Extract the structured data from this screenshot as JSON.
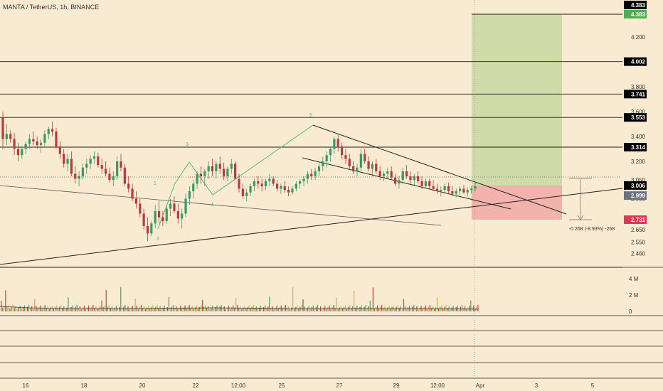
{
  "header": {
    "title": "MANTA / TetherUS, 1h, BINANCE"
  },
  "colors": {
    "background": "#f8ebd2",
    "up_candle": "#3a9a66",
    "down_candle": "#b83a3a",
    "target_zone": "#cfdca9",
    "stop_zone": "#f2b3ad",
    "wave_line": "#5ab56f",
    "level_line": "#1a1a1a"
  },
  "chart_data": {
    "type": "candlestick",
    "symbol": "MANTA / TetherUS",
    "interval": "1h",
    "exchange": "BINANCE",
    "x_ticks": [
      "16",
      "18",
      "20",
      "22",
      "12:00",
      "25",
      "27",
      "29",
      "12:00",
      "Apr",
      "3",
      "5"
    ],
    "price_ticks": [
      "4.200",
      "3.800",
      "3.600",
      "3.400",
      "3.200",
      "3.050",
      "2.900",
      "2.650",
      "2.550",
      "2.460"
    ],
    "price_range": [
      2.43,
      4.45
    ],
    "horizontal_levels": [
      "4.383",
      "4.002",
      "3.741",
      "3.553",
      "3.314",
      "3.006",
      "2.731"
    ],
    "current_price": "2.999",
    "current_price_label": "3.006",
    "position": {
      "entry": 3.006,
      "target": 4.383,
      "stop": 2.731,
      "measure_label": "-0.268 (-8.93%) -268"
    },
    "wave_labels": [
      "1",
      "2",
      "3",
      "4",
      "5"
    ],
    "volume": {
      "ticks": [
        "4 M",
        "2 M",
        "0"
      ]
    },
    "candles": [
      [
        3.55,
        3.6,
        3.3,
        3.38
      ],
      [
        3.38,
        3.5,
        3.33,
        3.42
      ],
      [
        3.42,
        3.45,
        3.35,
        3.38
      ],
      [
        3.38,
        3.43,
        3.25,
        3.3
      ],
      [
        3.3,
        3.35,
        3.2,
        3.25
      ],
      [
        3.25,
        3.32,
        3.22,
        3.3
      ],
      [
        3.3,
        3.36,
        3.26,
        3.34
      ],
      [
        3.34,
        3.42,
        3.3,
        3.38
      ],
      [
        3.38,
        3.44,
        3.33,
        3.36
      ],
      [
        3.36,
        3.4,
        3.3,
        3.33
      ],
      [
        3.33,
        3.38,
        3.27,
        3.35
      ],
      [
        3.35,
        3.45,
        3.32,
        3.42
      ],
      [
        3.42,
        3.48,
        3.38,
        3.46
      ],
      [
        3.46,
        3.52,
        3.4,
        3.44
      ],
      [
        3.44,
        3.47,
        3.3,
        3.32
      ],
      [
        3.32,
        3.36,
        3.22,
        3.26
      ],
      [
        3.26,
        3.3,
        3.15,
        3.18
      ],
      [
        3.18,
        3.26,
        3.12,
        3.22
      ],
      [
        3.22,
        3.28,
        3.08,
        3.1
      ],
      [
        3.1,
        3.16,
        3.02,
        3.06
      ],
      [
        3.06,
        3.12,
        3.0,
        3.08
      ],
      [
        3.08,
        3.18,
        3.05,
        3.15
      ],
      [
        3.15,
        3.22,
        3.1,
        3.18
      ],
      [
        3.18,
        3.25,
        3.14,
        3.22
      ],
      [
        3.22,
        3.28,
        3.18,
        3.24
      ],
      [
        3.24,
        3.27,
        3.15,
        3.17
      ],
      [
        3.17,
        3.22,
        3.1,
        3.14
      ],
      [
        3.14,
        3.2,
        3.08,
        3.1
      ],
      [
        3.1,
        3.15,
        3.03,
        3.05
      ],
      [
        3.05,
        3.12,
        3.0,
        3.08
      ],
      [
        3.08,
        3.24,
        3.05,
        3.2
      ],
      [
        3.2,
        3.26,
        3.12,
        3.15
      ],
      [
        3.15,
        3.18,
        3.0,
        3.02
      ],
      [
        3.02,
        3.08,
        2.95,
        2.98
      ],
      [
        2.98,
        3.02,
        2.88,
        2.9
      ],
      [
        2.9,
        2.96,
        2.82,
        2.86
      ],
      [
        2.86,
        2.9,
        2.75,
        2.78
      ],
      [
        2.78,
        2.82,
        2.65,
        2.68
      ],
      [
        2.68,
        2.75,
        2.56,
        2.62
      ],
      [
        2.62,
        2.72,
        2.6,
        2.7
      ],
      [
        2.7,
        2.85,
        2.66,
        2.8
      ],
      [
        2.8,
        2.88,
        2.7,
        2.75
      ],
      [
        2.75,
        2.8,
        2.68,
        2.72
      ],
      [
        2.72,
        2.84,
        2.7,
        2.82
      ],
      [
        2.82,
        2.9,
        2.76,
        2.86
      ],
      [
        2.86,
        2.92,
        2.78,
        2.8
      ],
      [
        2.8,
        2.86,
        2.7,
        2.74
      ],
      [
        2.74,
        2.82,
        2.66,
        2.78
      ],
      [
        2.78,
        2.94,
        2.75,
        2.9
      ],
      [
        2.9,
        3.0,
        2.85,
        2.96
      ],
      [
        2.96,
        3.05,
        2.9,
        3.02
      ],
      [
        3.02,
        3.12,
        2.98,
        3.1
      ],
      [
        3.1,
        3.16,
        3.02,
        3.08
      ],
      [
        3.08,
        3.14,
        3.0,
        3.12
      ],
      [
        3.12,
        3.2,
        3.06,
        3.16
      ],
      [
        3.16,
        3.22,
        3.08,
        3.12
      ],
      [
        3.12,
        3.2,
        3.06,
        3.18
      ],
      [
        3.18,
        3.24,
        3.1,
        3.14
      ],
      [
        3.14,
        3.19,
        3.05,
        3.08
      ],
      [
        3.08,
        3.16,
        3.04,
        3.14
      ],
      [
        3.14,
        3.22,
        3.1,
        3.18
      ],
      [
        3.18,
        3.2,
        3.05,
        3.06
      ],
      [
        3.06,
        3.1,
        2.95,
        2.98
      ],
      [
        2.98,
        3.02,
        2.9,
        2.92
      ],
      [
        2.92,
        2.98,
        2.88,
        2.95
      ],
      [
        2.95,
        3.02,
        2.92,
        3.0
      ],
      [
        3.0,
        3.06,
        2.96,
        3.04
      ],
      [
        3.04,
        3.08,
        2.98,
        3.02
      ],
      [
        3.02,
        3.06,
        2.96,
        3.0
      ],
      [
        3.0,
        3.06,
        2.97,
        3.04
      ],
      [
        3.04,
        3.1,
        3.0,
        3.06
      ],
      [
        3.06,
        3.08,
        3.0,
        3.02
      ],
      [
        3.02,
        3.05,
        2.96,
        2.98
      ],
      [
        2.98,
        3.02,
        2.94,
        3.0
      ],
      [
        3.0,
        3.04,
        2.95,
        2.97
      ],
      [
        2.97,
        3.0,
        2.92,
        2.95
      ],
      [
        2.95,
        3.0,
        2.93,
        2.98
      ],
      [
        2.98,
        3.04,
        2.96,
        3.02
      ],
      [
        3.02,
        3.06,
        2.98,
        3.04
      ],
      [
        3.04,
        3.08,
        3.0,
        3.06
      ],
      [
        3.06,
        3.12,
        3.02,
        3.1
      ],
      [
        3.1,
        3.14,
        3.05,
        3.08
      ],
      [
        3.08,
        3.15,
        3.05,
        3.12
      ],
      [
        3.12,
        3.2,
        3.08,
        3.16
      ],
      [
        3.16,
        3.24,
        3.12,
        3.2
      ],
      [
        3.2,
        3.28,
        3.15,
        3.25
      ],
      [
        3.25,
        3.32,
        3.2,
        3.3
      ],
      [
        3.3,
        3.4,
        3.26,
        3.38
      ],
      [
        3.38,
        3.42,
        3.28,
        3.32
      ],
      [
        3.32,
        3.35,
        3.22,
        3.25
      ],
      [
        3.25,
        3.3,
        3.18,
        3.22
      ],
      [
        3.22,
        3.26,
        3.14,
        3.16
      ],
      [
        3.16,
        3.2,
        3.1,
        3.12
      ],
      [
        3.12,
        3.18,
        3.08,
        3.15
      ],
      [
        3.15,
        3.3,
        3.12,
        3.26
      ],
      [
        3.26,
        3.3,
        3.18,
        3.2
      ],
      [
        3.2,
        3.24,
        3.12,
        3.14
      ],
      [
        3.14,
        3.2,
        3.08,
        3.18
      ],
      [
        3.18,
        3.22,
        3.1,
        3.12
      ],
      [
        3.12,
        3.16,
        3.05,
        3.08
      ],
      [
        3.08,
        3.12,
        3.04,
        3.1
      ],
      [
        3.1,
        3.15,
        3.06,
        3.12
      ],
      [
        3.12,
        3.16,
        3.05,
        3.07
      ],
      [
        3.07,
        3.1,
        3.0,
        3.02
      ],
      [
        3.02,
        3.08,
        2.98,
        3.05
      ],
      [
        3.05,
        3.15,
        3.02,
        3.12
      ],
      [
        3.12,
        3.17,
        3.06,
        3.08
      ],
      [
        3.08,
        3.12,
        3.02,
        3.05
      ],
      [
        3.05,
        3.1,
        3.0,
        3.08
      ],
      [
        3.08,
        3.12,
        3.02,
        3.04
      ],
      [
        3.04,
        3.08,
        2.98,
        3.0
      ],
      [
        3.0,
        3.06,
        2.98,
        3.04
      ],
      [
        3.04,
        3.06,
        2.98,
        3.0
      ],
      [
        3.0,
        3.05,
        2.96,
        2.98
      ],
      [
        2.98,
        3.02,
        2.94,
        2.96
      ],
      [
        2.96,
        3.0,
        2.92,
        2.97
      ],
      [
        2.97,
        3.02,
        2.95,
        3.0
      ],
      [
        3.0,
        3.03,
        2.94,
        2.96
      ],
      [
        2.96,
        3.0,
        2.92,
        2.94
      ],
      [
        2.94,
        2.98,
        2.91,
        2.96
      ],
      [
        2.96,
        3.0,
        2.93,
        2.98
      ],
      [
        2.98,
        3.01,
        2.94,
        2.95
      ],
      [
        2.95,
        2.99,
        2.92,
        2.97
      ],
      [
        2.97,
        3.0,
        2.94,
        2.98
      ],
      [
        2.98,
        3.03,
        2.96,
        3.0
      ]
    ]
  }
}
